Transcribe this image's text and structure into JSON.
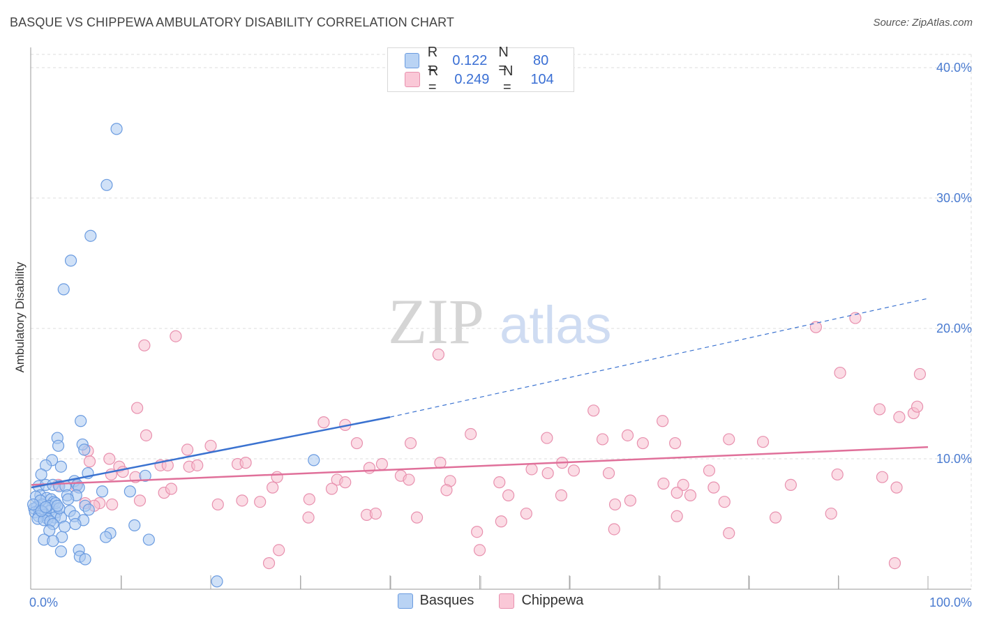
{
  "title": "BASQUE VS CHIPPEWA AMBULATORY DISABILITY CORRELATION CHART",
  "source": "Source: ZipAtlas.com",
  "watermark": {
    "zip": "ZIP",
    "atlas": "atlas"
  },
  "legend": {
    "rows": [
      {
        "r_label": "R =",
        "r_value": "0.122",
        "n_label": "N =",
        "n_value": "80"
      },
      {
        "r_label": "R =",
        "r_value": "0.249",
        "n_label": "N =",
        "n_value": "104"
      }
    ]
  },
  "bottom_legend": [
    "Basques",
    "Chippewa"
  ],
  "colors": {
    "basque_fill": "#a9c8f0",
    "basque_stroke": "#6a9be0",
    "basque_line": "#3a72d0",
    "chippewa_fill": "#f7bfd0",
    "chippewa_stroke": "#e890ae",
    "chippewa_line": "#e0709a",
    "grid": "#dcdcdc",
    "tick_text": "#4a7bd0"
  },
  "chart_data": {
    "type": "scatter",
    "title": "BASQUE VS CHIPPEWA AMBULATORY DISABILITY CORRELATION CHART",
    "xlabel": "",
    "ylabel": "Ambulatory Disability",
    "xlim": [
      0,
      100
    ],
    "ylim": [
      0,
      40
    ],
    "x_tick_labels": [
      "0.0%",
      "100.0%"
    ],
    "y_ticks": [
      10,
      20,
      30,
      40
    ],
    "y_tick_labels": [
      "10.0%",
      "20.0%",
      "30.0%",
      "40.0%"
    ],
    "grid": true,
    "legend_position": "top-center",
    "series": [
      {
        "name": "Basques",
        "R": 0.122,
        "N": 80,
        "trend": {
          "x0": 0,
          "y0": 7.8,
          "x1": 40,
          "y1": 13.2,
          "dashed_to_x": 100,
          "dashed_to_y": 22.3
        },
        "points": [
          [
            9.5,
            35.3
          ],
          [
            8.4,
            31.0
          ],
          [
            6.6,
            27.1
          ],
          [
            4.4,
            25.2
          ],
          [
            3.6,
            23.0
          ],
          [
            5.5,
            12.9
          ],
          [
            2.9,
            11.6
          ],
          [
            5.7,
            11.1
          ],
          [
            3.0,
            11.0
          ],
          [
            5.9,
            10.7
          ],
          [
            31.5,
            9.9
          ],
          [
            2.3,
            9.9
          ],
          [
            1.6,
            9.5
          ],
          [
            3.3,
            9.4
          ],
          [
            12.7,
            8.7
          ],
          [
            6.3,
            8.9
          ],
          [
            1.1,
            8.8
          ],
          [
            4.8,
            8.3
          ],
          [
            5.1,
            8.0
          ],
          [
            0.8,
            7.9
          ],
          [
            1.6,
            8.0
          ],
          [
            2.4,
            8.0
          ],
          [
            3.1,
            7.9
          ],
          [
            3.8,
            7.9
          ],
          [
            5.3,
            7.8
          ],
          [
            7.9,
            7.5
          ],
          [
            11.0,
            7.5
          ],
          [
            4.0,
            7.2
          ],
          [
            5.0,
            7.2
          ],
          [
            1.0,
            7.2
          ],
          [
            0.5,
            7.1
          ],
          [
            1.7,
            7.0
          ],
          [
            2.2,
            6.9
          ],
          [
            4.1,
            6.9
          ],
          [
            2.5,
            6.7
          ],
          [
            1.2,
            6.5
          ],
          [
            1.9,
            6.4
          ],
          [
            0.6,
            6.3
          ],
          [
            6.0,
            6.4
          ],
          [
            0.3,
            6.2
          ],
          [
            0.9,
            6.1
          ],
          [
            2.0,
            6.0
          ],
          [
            0.4,
            5.9
          ],
          [
            1.3,
            5.9
          ],
          [
            2.8,
            5.9
          ],
          [
            4.3,
            6.0
          ],
          [
            6.4,
            6.1
          ],
          [
            1.5,
            5.7
          ],
          [
            0.8,
            5.6
          ],
          [
            2.6,
            5.5
          ],
          [
            1.8,
            5.4
          ],
          [
            3.3,
            5.5
          ],
          [
            4.8,
            5.6
          ],
          [
            0.7,
            5.4
          ],
          [
            1.4,
            5.3
          ],
          [
            2.1,
            5.2
          ],
          [
            5.8,
            5.3
          ],
          [
            2.4,
            5.0
          ],
          [
            3.7,
            4.8
          ],
          [
            4.9,
            5.0
          ],
          [
            11.5,
            4.9
          ],
          [
            2.0,
            4.5
          ],
          [
            8.8,
            4.3
          ],
          [
            8.3,
            4.0
          ],
          [
            3.4,
            4.0
          ],
          [
            1.4,
            3.8
          ],
          [
            2.4,
            3.7
          ],
          [
            13.1,
            3.8
          ],
          [
            5.3,
            3.0
          ],
          [
            3.3,
            2.9
          ],
          [
            5.4,
            2.5
          ],
          [
            6.0,
            2.3
          ],
          [
            20.7,
            0.6
          ],
          [
            1.0,
            6.8
          ],
          [
            2.7,
            6.6
          ],
          [
            3.1,
            6.2
          ],
          [
            0.2,
            6.5
          ],
          [
            1.1,
            6.0
          ],
          [
            1.6,
            6.3
          ],
          [
            2.9,
            6.4
          ]
        ]
      },
      {
        "name": "Chippewa",
        "R": 0.249,
        "N": 104,
        "trend": {
          "x0": 0,
          "y0": 8.0,
          "x1": 100,
          "y1": 10.9
        },
        "points": [
          [
            16.1,
            19.4
          ],
          [
            12.6,
            18.7
          ],
          [
            45.4,
            18.0
          ],
          [
            87.5,
            20.1
          ],
          [
            91.9,
            20.8
          ],
          [
            90.2,
            16.6
          ],
          [
            99.1,
            16.5
          ],
          [
            11.8,
            13.9
          ],
          [
            94.6,
            13.8
          ],
          [
            96.8,
            13.2
          ],
          [
            98.4,
            13.5
          ],
          [
            98.8,
            14.0
          ],
          [
            62.7,
            13.7
          ],
          [
            70.4,
            12.9
          ],
          [
            32.6,
            12.8
          ],
          [
            35.0,
            12.6
          ],
          [
            12.8,
            11.8
          ],
          [
            49.0,
            11.9
          ],
          [
            57.5,
            11.6
          ],
          [
            63.7,
            11.5
          ],
          [
            66.5,
            11.8
          ],
          [
            77.8,
            11.5
          ],
          [
            68.2,
            11.2
          ],
          [
            42.3,
            11.2
          ],
          [
            71.8,
            11.2
          ],
          [
            81.6,
            11.3
          ],
          [
            20.0,
            11.0
          ],
          [
            36.3,
            11.2
          ],
          [
            17.4,
            10.7
          ],
          [
            6.3,
            10.6
          ],
          [
            8.7,
            10.0
          ],
          [
            6.5,
            9.8
          ],
          [
            23.0,
            9.6
          ],
          [
            23.9,
            9.7
          ],
          [
            45.6,
            9.7
          ],
          [
            39.1,
            9.6
          ],
          [
            59.2,
            9.7
          ],
          [
            14.4,
            9.5
          ],
          [
            15.2,
            9.5
          ],
          [
            17.6,
            9.4
          ],
          [
            18.5,
            9.5
          ],
          [
            9.8,
            9.4
          ],
          [
            10.2,
            9.0
          ],
          [
            37.7,
            9.3
          ],
          [
            55.8,
            9.2
          ],
          [
            60.5,
            9.1
          ],
          [
            75.6,
            9.1
          ],
          [
            41.2,
            8.7
          ],
          [
            8.9,
            8.8
          ],
          [
            11.6,
            8.6
          ],
          [
            27.4,
            8.6
          ],
          [
            34.1,
            8.4
          ],
          [
            35.0,
            8.2
          ],
          [
            42.1,
            8.4
          ],
          [
            46.7,
            8.3
          ],
          [
            52.2,
            8.2
          ],
          [
            57.6,
            8.9
          ],
          [
            64.4,
            8.9
          ],
          [
            72.7,
            8.0
          ],
          [
            84.7,
            8.0
          ],
          [
            89.9,
            8.8
          ],
          [
            94.9,
            8.6
          ],
          [
            96.5,
            7.8
          ],
          [
            3.0,
            8.0
          ],
          [
            5.0,
            7.9
          ],
          [
            14.8,
            7.4
          ],
          [
            15.6,
            7.7
          ],
          [
            26.9,
            7.8
          ],
          [
            33.5,
            7.7
          ],
          [
            46.3,
            7.6
          ],
          [
            53.2,
            7.2
          ],
          [
            59.1,
            7.2
          ],
          [
            70.5,
            8.1
          ],
          [
            73.5,
            7.2
          ],
          [
            76.1,
            7.8
          ],
          [
            72.0,
            7.4
          ],
          [
            23.5,
            6.8
          ],
          [
            25.5,
            6.7
          ],
          [
            12.1,
            6.8
          ],
          [
            7.6,
            6.6
          ],
          [
            9.0,
            6.5
          ],
          [
            6.0,
            6.6
          ],
          [
            20.8,
            6.5
          ],
          [
            31.0,
            6.9
          ],
          [
            65.1,
            6.5
          ],
          [
            66.8,
            6.8
          ],
          [
            77.3,
            6.7
          ],
          [
            37.4,
            5.7
          ],
          [
            38.4,
            5.8
          ],
          [
            43.0,
            5.5
          ],
          [
            52.4,
            5.2
          ],
          [
            55.2,
            5.8
          ],
          [
            72.0,
            5.6
          ],
          [
            83.0,
            5.5
          ],
          [
            30.9,
            5.5
          ],
          [
            89.2,
            5.8
          ],
          [
            7.0,
            6.4
          ],
          [
            49.7,
            4.4
          ],
          [
            65.0,
            4.6
          ],
          [
            77.8,
            4.3
          ],
          [
            50.0,
            3.0
          ],
          [
            27.6,
            3.0
          ],
          [
            26.5,
            2.0
          ],
          [
            96.3,
            2.0
          ]
        ]
      }
    ]
  }
}
